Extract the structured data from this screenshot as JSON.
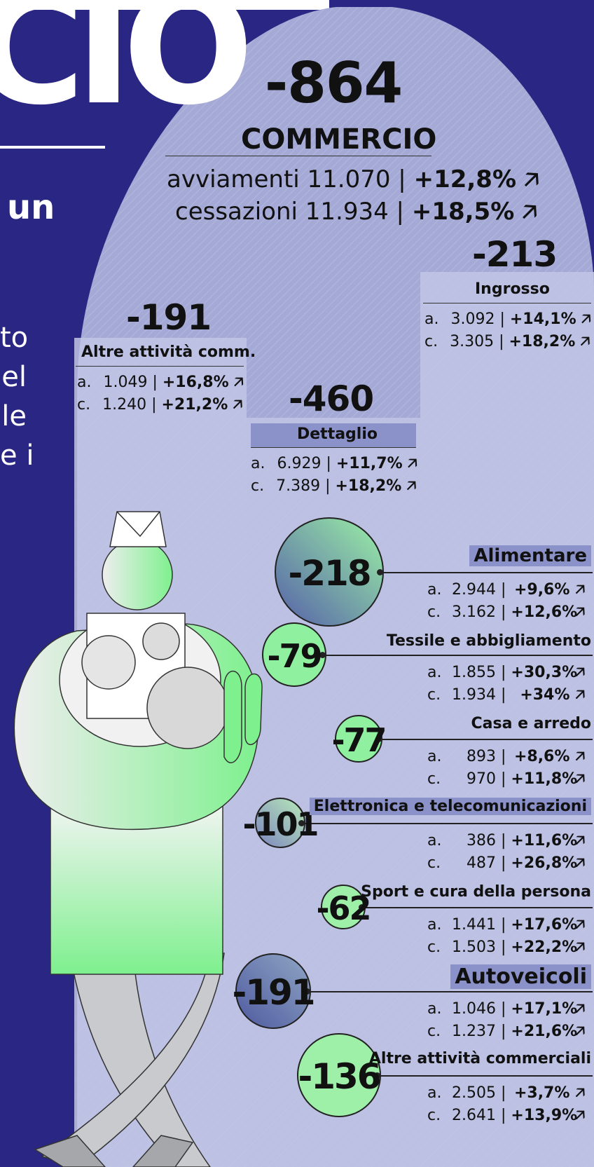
{
  "title_fragment": "CIO",
  "side_text": {
    "line1": "un",
    "frag_a": "to",
    "frag_b": "el",
    "frag_c": "le",
    "frag_d": "e i"
  },
  "commercio": {
    "total": "-864",
    "label": "COMMERCIO",
    "avviamenti": {
      "text": "avviamenti 11.070 |",
      "pct": "+12,8%"
    },
    "cessazioni": {
      "text": "cessazioni 11.934 |",
      "pct": "+18,5%"
    }
  },
  "arrow_glyph": "🡥",
  "groups": {
    "altre": {
      "total": "-191",
      "label": "Altre attività comm.",
      "a_label": "a.",
      "a_val": "1.049",
      "a_pct": "+16,8%",
      "c_label": "c.",
      "c_val": "1.240",
      "c_pct": "+21,2%"
    },
    "dettaglio": {
      "total": "-460",
      "label": "Dettaglio",
      "a_label": "a.",
      "a_val": "6.929",
      "a_pct": "+11,7%",
      "c_label": "c.",
      "c_val": "7.389",
      "c_pct": "+18,2%"
    },
    "ingrosso": {
      "total": "-213",
      "label": "Ingrosso",
      "a_label": "a.",
      "a_val": "3.092",
      "a_pct": "+14,1%",
      "c_label": "c.",
      "c_val": "3.305",
      "c_pct": "+18,2%"
    }
  },
  "sectors": [
    {
      "value": "-218",
      "label": "Alimentare",
      "a_val": "2.944",
      "a_pct": "+9,6%",
      "c_val": "3.162",
      "c_pct": "+12,6%"
    },
    {
      "value": "-79",
      "label": "Tessile e abbigliamento",
      "a_val": "1.855",
      "a_pct": "+30,3%",
      "c_val": "1.934",
      "c_pct": "+34%"
    },
    {
      "value": "-77",
      "label": "Casa e arredo",
      "a_val": "893",
      "a_pct": "+8,6%",
      "c_val": "970",
      "c_pct": "+11,8%"
    },
    {
      "value": "-101",
      "label": "Elettronica e telecomunicazioni",
      "a_val": "386",
      "a_pct": "+11,6%",
      "c_val": "487",
      "c_pct": "+26,8%"
    },
    {
      "value": "-62",
      "label": "Sport e cura della persona",
      "a_val": "1.441",
      "a_pct": "+17,6%",
      "c_val": "1.503",
      "c_pct": "+22,2%"
    },
    {
      "value": "-191",
      "label": "Autoveicoli",
      "a_val": "1.046",
      "a_pct": "+17,1%",
      "c_val": "1.237",
      "c_pct": "+21,6%"
    },
    {
      "value": "-136",
      "label": "Altre attività commerciali",
      "a_val": "2.505",
      "a_pct": "+3,7%",
      "c_val": "2.641",
      "c_pct": "+13,9%"
    }
  ],
  "row_labels": {
    "a": "a.",
    "c": "c."
  },
  "colors": {
    "navy": "#2a2683",
    "lavender": "#a4a9d6",
    "panel": "#c4c8e6",
    "green": "#8ff0a0",
    "dark_circle": "#5f6aa8"
  }
}
